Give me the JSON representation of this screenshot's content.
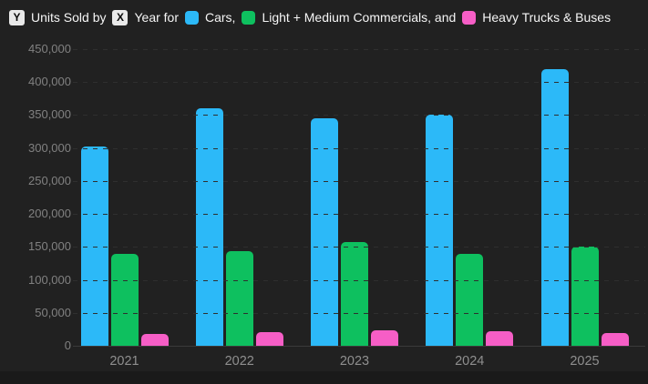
{
  "header": {
    "y_badge": "Y",
    "y_text": "Units Sold by",
    "x_badge": "X",
    "x_text": "Year for",
    "legend": [
      {
        "label": "Cars,",
        "color": "#2cb9f8"
      },
      {
        "label": "Light + Medium Commercials, and",
        "color": "#0ec05f"
      },
      {
        "label": "Heavy Trucks & Buses",
        "color": "#f65ec6"
      }
    ]
  },
  "chart_data": {
    "type": "bar",
    "title": "Units Sold by Year for Cars, Light + Medium Commercials, and Heavy Trucks & Buses",
    "xlabel": "Year",
    "ylabel": "Units Sold",
    "categories": [
      "2021",
      "2022",
      "2023",
      "2024",
      "2025"
    ],
    "series": [
      {
        "name": "Cars",
        "color": "#2cb9f8",
        "values": [
          302000,
          361000,
          345000,
          350000,
          420000
        ]
      },
      {
        "name": "Light + Medium Commercials",
        "color": "#0ec05f",
        "values": [
          139000,
          143000,
          158000,
          140000,
          150000
        ]
      },
      {
        "name": "Heavy Trucks & Buses",
        "color": "#f65ec6",
        "values": [
          18000,
          21000,
          23000,
          22000,
          20000
        ]
      }
    ],
    "ylim": [
      0,
      450000
    ],
    "ytick_step": 50000,
    "ytick_labels": [
      "450,000",
      "400,000",
      "350,000",
      "300,000",
      "250,000",
      "200,000",
      "150,000",
      "100,000",
      "50,000",
      "0"
    ],
    "grid": "dashed-horizontal",
    "legend_position": "top"
  },
  "colors": {
    "background": "#212121",
    "grid": "#2f2f2f",
    "axis_tick_label": "#818181",
    "category_label": "#8f8f8f",
    "header_text": "#f5f5f5",
    "keycap_bg": "#e9e9e9"
  }
}
